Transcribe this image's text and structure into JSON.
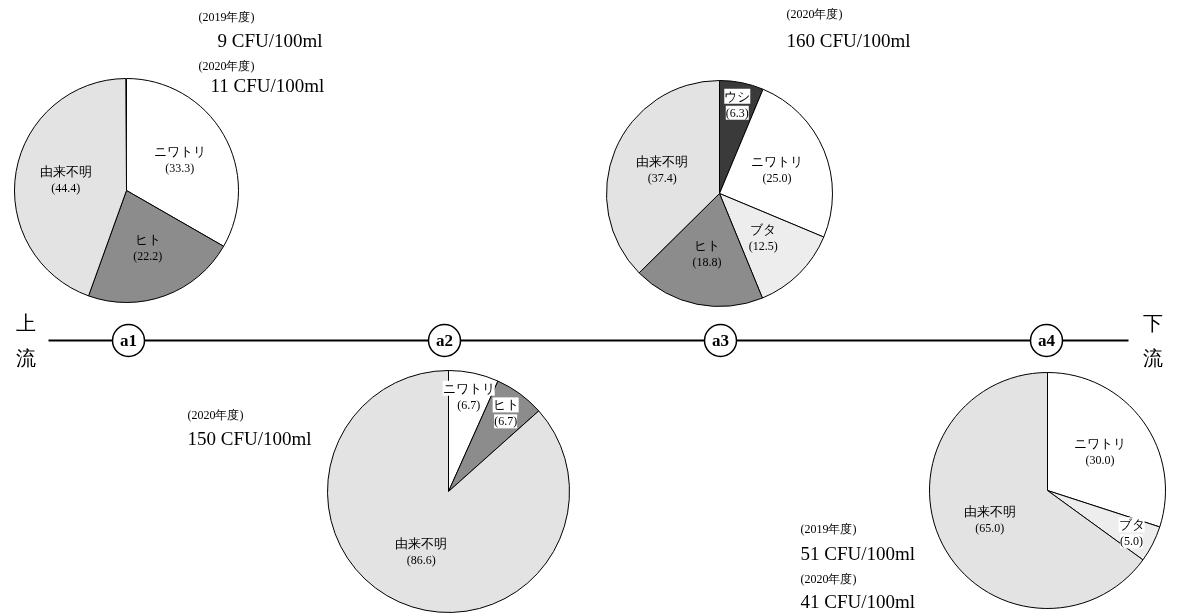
{
  "chart_data": [
    {
      "type": "pie",
      "title": "a1",
      "categories": [
        "ニワトリ",
        "ヒト",
        "由来不明"
      ],
      "values": [
        33.3,
        22.2,
        44.4
      ],
      "colors": [
        "#ffffff",
        "#8c8c8c",
        "#e3e3e3"
      ],
      "value_labels": [
        "(33.3)",
        "(22.2)",
        "(44.4)"
      ],
      "annotations": [
        "上流",
        "(2019年度)",
        "9 CFU/100ml",
        "(2020年度)",
        "11 CFU/100ml"
      ]
    },
    {
      "type": "pie",
      "title": "a2",
      "categories": [
        "ニワトリ",
        "ヒト",
        "由来不明"
      ],
      "values": [
        6.7,
        6.7,
        86.6
      ],
      "colors": [
        "#ffffff",
        "#8c8c8c",
        "#e3e3e3"
      ],
      "value_labels": [
        "(6.7)",
        "(6.7)",
        "(86.6)"
      ],
      "annotations": [
        "(2020年度)",
        "150 CFU/100ml"
      ]
    },
    {
      "type": "pie",
      "title": "a3",
      "categories": [
        "ウシ",
        "ニワトリ",
        "ブタ",
        "ヒト",
        "由来不明"
      ],
      "values": [
        6.3,
        25.0,
        12.5,
        18.8,
        37.4
      ],
      "colors": [
        "#3a3a3a",
        "#ffffff",
        "#ededed",
        "#8c8c8c",
        "#e3e3e3"
      ],
      "value_labels": [
        "(6.3)",
        "(25.0)",
        "(12.5)",
        "(18.8)",
        "(37.4)"
      ],
      "annotations": [
        "(2020年度)",
        "160 CFU/100ml"
      ]
    },
    {
      "type": "pie",
      "title": "a4",
      "categories": [
        "ニワトリ",
        "ブタ",
        "由来不明"
      ],
      "values": [
        30.0,
        5.0,
        65.0
      ],
      "colors": [
        "#ffffff",
        "#ededed",
        "#e3e3e3"
      ],
      "value_labels": [
        "(30.0)",
        "(5.0)",
        "(65.0)"
      ],
      "annotations": [
        "(2019年度)",
        "51 CFU/100ml",
        "(2020年度)",
        "41 CFU/100ml",
        "下流"
      ]
    }
  ]
}
